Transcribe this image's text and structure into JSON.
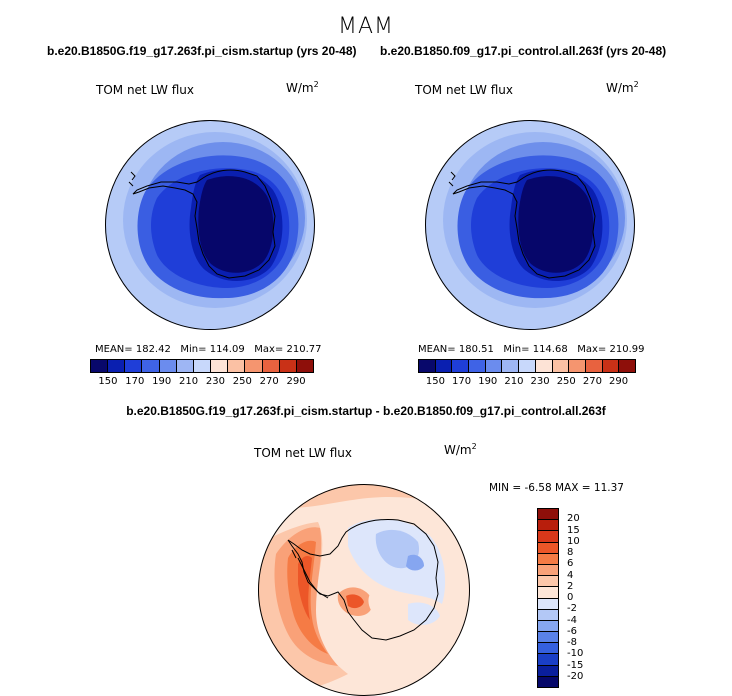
{
  "season": "MAM",
  "diff_title": "b.e20.B1850G.f19_g17.263f.pi_cism.startup - b.e20.B1850.f09_g17.pi_control.all.263f",
  "panels": [
    {
      "case_title": "b.e20.B1850G.f19_g17.263f.pi_cism.startup (yrs 20-48)",
      "variable": "TOM net LW flux",
      "units_base": "W/m",
      "units_exp": "2",
      "mean_label": "MEAN=",
      "mean_value": "182.42",
      "min_label": "Min=",
      "min_value": "114.09",
      "max_label": "Max=",
      "max_value": "210.77"
    },
    {
      "case_title": "b.e20.B1850.f09_g17.pi_control.all.263f (yrs 20-48)",
      "variable": "TOM net LW flux",
      "units_base": "W/m",
      "units_exp": "2",
      "mean_label": "MEAN=",
      "mean_value": "180.51",
      "min_label": "Min=",
      "min_value": "114.68",
      "max_label": "Max=",
      "max_value": "210.99"
    }
  ],
  "diff_panel": {
    "variable": "TOM net LW flux",
    "units_base": "W/m",
    "units_exp": "2",
    "minmax_text": "MIN =   -6.58 MAX =   11.37"
  },
  "colorbar_main": {
    "labels": [
      "150",
      "170",
      "190",
      "210",
      "230",
      "250",
      "270",
      "290"
    ],
    "colors": [
      "#08086b",
      "#0a1fb0",
      "#1f3ed8",
      "#3f63e6",
      "#6b8cee",
      "#9eb6f4",
      "#c8d8fb",
      "#fde3d6",
      "#fbc1a4",
      "#f5956f",
      "#e8623f",
      "#c93117",
      "#8e0f0a"
    ]
  },
  "colorbar_diff": {
    "labels": [
      "20",
      "15",
      "10",
      "8",
      "6",
      "4",
      "2",
      "0",
      "-2",
      "-4",
      "-6",
      "-8",
      "-10",
      "-15",
      "-20"
    ],
    "colors": [
      "#8e0f0a",
      "#b81e0c",
      "#d9381a",
      "#ec5628",
      "#f57b45",
      "#f9a178",
      "#fcc7aa",
      "#fde6d8",
      "#dde6fb",
      "#b3c8f6",
      "#86a6f0",
      "#5a82e8",
      "#3560de",
      "#1a3fc6",
      "#0a1f9c",
      "#06086a"
    ]
  }
}
